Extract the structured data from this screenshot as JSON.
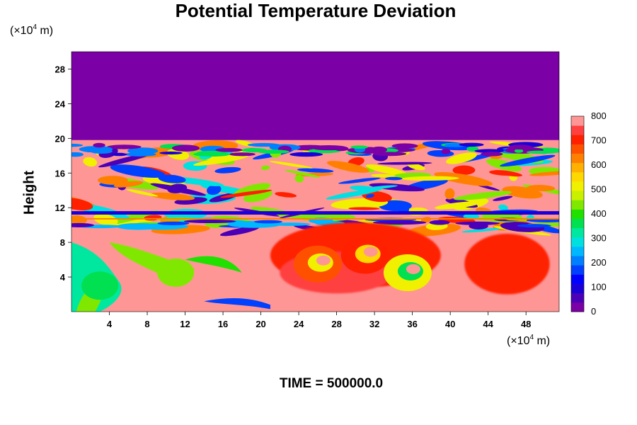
{
  "chart_data": {
    "type": "heatmap",
    "title": "Potential Temperature Deviation",
    "ylabel": "Height",
    "y_unit": {
      "prefix": "(×10",
      "exp": "4",
      "suffix": " m)"
    },
    "x_unit": {
      "prefix": "(×10",
      "exp": "4",
      "suffix": " m)"
    },
    "footer": "TIME = 500000.0",
    "xlim": [
      0,
      51.5
    ],
    "ylim": [
      0,
      30
    ],
    "x_ticks": [
      "4",
      "8",
      "12",
      "16",
      "20",
      "24",
      "28",
      "32",
      "36",
      "40",
      "44",
      "48"
    ],
    "y_ticks": [
      "4",
      "8",
      "12",
      "16",
      "20",
      "24",
      "28"
    ],
    "colorbar": {
      "range": [
        0,
        800
      ],
      "tick_labels": [
        "0",
        "100",
        "200",
        "300",
        "400",
        "500",
        "600",
        "700",
        "800"
      ],
      "colors": [
        "#7b00a6",
        "#4b00b8",
        "#1a00d8",
        "#0000ff",
        "#0040ff",
        "#0080ff",
        "#00b8ff",
        "#00e0e0",
        "#00e8a0",
        "#00e050",
        "#20e000",
        "#80e800",
        "#c8f000",
        "#f0f000",
        "#ffd800",
        "#ffb000",
        "#ff8000",
        "#ff5000",
        "#ff2000",
        "#ff4040",
        "#ff9696"
      ]
    },
    "regions": {
      "upper_layer_above_km": 19.8,
      "upper_layer_value": 0,
      "background_value": 800,
      "dark_band_height": 11.2,
      "dark_band_value": 80
    },
    "features": [
      {
        "label": "eddy",
        "x": 26,
        "y": 5.5,
        "value": 650
      },
      {
        "label": "eddy",
        "x": 35.5,
        "y": 4.5,
        "value": 520
      },
      {
        "label": "eddy",
        "x": 31,
        "y": 6.5,
        "value": 700
      },
      {
        "label": "plume",
        "x": 3,
        "y": 3,
        "value": 350
      },
      {
        "label": "plume",
        "x": 11,
        "y": 4.5,
        "value": 420
      }
    ]
  }
}
